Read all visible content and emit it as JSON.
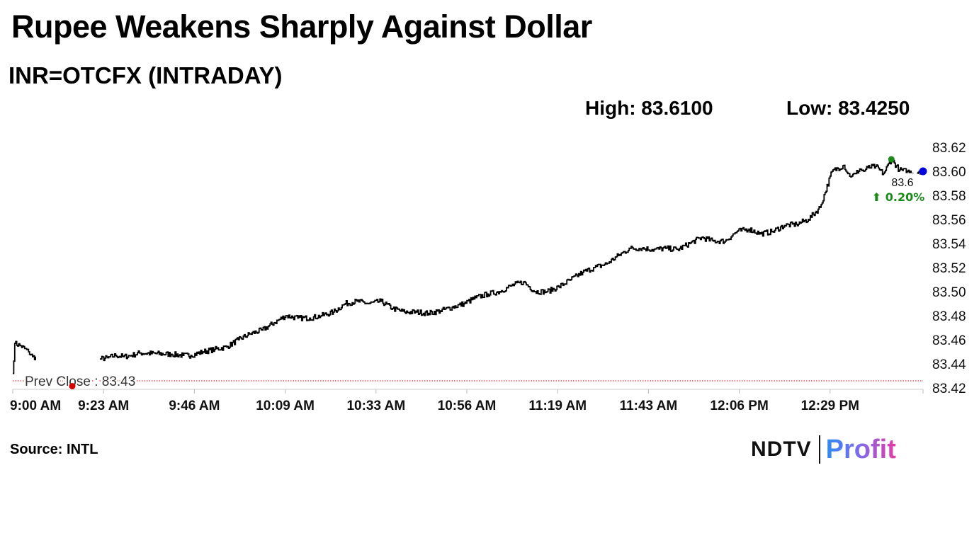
{
  "header": {
    "title": "Rupee Weakens Sharply Against Dollar",
    "subtitle": "INR=OTCFX (INTRADAY)",
    "high_text": "High: 83.6100",
    "low_text": "Low: 83.4250"
  },
  "footer": {
    "source": "Source: INTL",
    "logo_left": "NDTV",
    "logo_right": "Profit"
  },
  "colors": {
    "line": "#000000",
    "prev_close": "#d40000",
    "high_marker": "#1a8a1a",
    "last_marker": "#0000e0",
    "change_text": "#1a8a1a"
  },
  "chart_data": {
    "type": "line",
    "title": "Rupee Weakens Sharply Against Dollar",
    "subtitle": "INR=OTCFX (INTRADAY)",
    "xlabel": "",
    "ylabel": "",
    "ylim": [
      83.42,
      83.62
    ],
    "y_ticks": [
      "83.62",
      "83.60",
      "83.58",
      "83.56",
      "83.54",
      "83.52",
      "83.50",
      "83.48",
      "83.46",
      "83.44",
      "83.42"
    ],
    "x_tick_labels": [
      "9:00 AM",
      "9:23 AM",
      "9:46 AM",
      "10:09 AM",
      "10:33 AM",
      "10:56 AM",
      "11:19 AM",
      "11:43 AM",
      "12:06 PM",
      "12:29 PM"
    ],
    "x_range_minutes": [
      0,
      230
    ],
    "grid": false,
    "prev_close": {
      "value": 83.43,
      "label": "Prev Close : 83.43"
    },
    "high": 83.61,
    "low": 83.425,
    "last": {
      "value": 83.6,
      "label": "83.6",
      "change_label": "⬆ 0.20%"
    },
    "series": [
      {
        "x": [
          0,
          0.5,
          2,
          4,
          5,
          6,
          22,
          24,
          26,
          28,
          30,
          32,
          40,
          43,
          45,
          48,
          51,
          54,
          57,
          60,
          63,
          66,
          69,
          72,
          75,
          78,
          81,
          84,
          87,
          90,
          93,
          96,
          99,
          102,
          105,
          108,
          111,
          114,
          117,
          120,
          123,
          126,
          129,
          132,
          135,
          138,
          141,
          144,
          147,
          150,
          153,
          156,
          159,
          162,
          165,
          168,
          171,
          174,
          177,
          180,
          183,
          186,
          189,
          192,
          195,
          198,
          201,
          204,
          207,
          210,
          211,
          212,
          213,
          214,
          215,
          216,
          218,
          220,
          222,
          224,
          226,
          228,
          229,
          230
        ],
        "y": [
          83.432,
          83.457,
          83.455,
          83.45,
          83.446,
          83.445,
          83.444,
          83.445,
          83.447,
          83.446,
          83.447,
          83.449,
          83.448,
          83.447,
          83.447,
          83.45,
          83.452,
          83.454,
          83.46,
          83.465,
          83.468,
          83.474,
          83.48,
          83.478,
          83.478,
          83.48,
          83.483,
          83.49,
          83.492,
          83.49,
          83.492,
          83.486,
          83.483,
          83.483,
          83.482,
          83.484,
          83.487,
          83.49,
          83.495,
          83.498,
          83.5,
          83.505,
          83.508,
          83.5,
          83.5,
          83.504,
          83.51,
          83.516,
          83.52,
          83.523,
          83.53,
          83.536,
          83.536,
          83.535,
          83.536,
          83.535,
          83.54,
          83.545,
          83.542,
          83.542,
          83.55,
          83.552,
          83.548,
          83.55,
          83.555,
          83.556,
          83.56,
          83.57,
          83.6,
          83.605,
          83.598,
          83.596,
          83.598,
          83.602,
          83.6,
          83.603,
          83.604,
          83.598,
          83.61,
          83.601,
          83.6,
          83.598,
          83.6,
          83.6
        ]
      }
    ]
  }
}
